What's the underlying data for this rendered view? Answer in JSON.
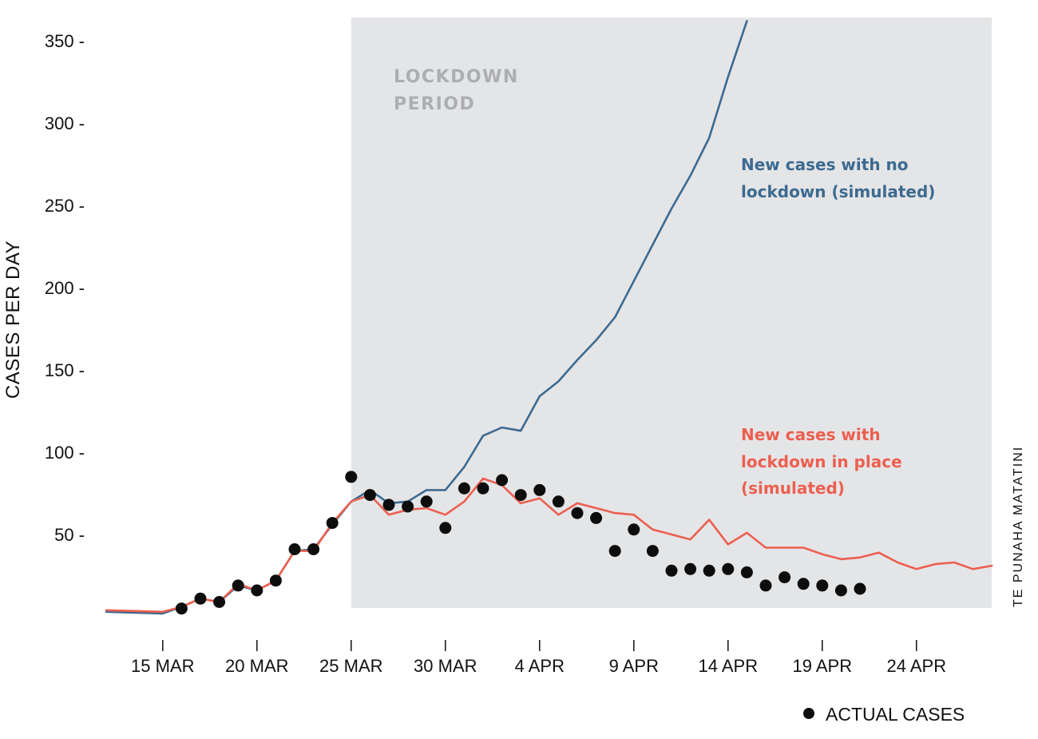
{
  "chart_data": {
    "type": "line",
    "ylabel": "CASES PER DAY",
    "ylim": [
      0,
      360
    ],
    "yticks": [
      50,
      100,
      150,
      200,
      250,
      300,
      350
    ],
    "ytick_labels": [
      "50 -",
      "100 -",
      "150 -",
      "200 -",
      "250 -",
      "300 -",
      "350 -"
    ],
    "xlim": [
      "2020-03-12",
      "2020-04-28"
    ],
    "xticks": [
      "2020-03-15",
      "2020-03-20",
      "2020-03-25",
      "2020-03-30",
      "2020-04-04",
      "2020-04-09",
      "2020-04-14",
      "2020-04-19",
      "2020-04-24"
    ],
    "xtick_labels": [
      "15 MAR",
      "20 MAR",
      "25 MAR",
      "30 MAR",
      "4 APR",
      "9 APR",
      "14 APR",
      "19 APR",
      "24 APR"
    ],
    "lockdown_period": {
      "label_lines": [
        "LOCKDOWN",
        "PERIOD"
      ],
      "start": "2020-03-25",
      "end": "2020-04-28",
      "color": "#e4e5e7"
    },
    "series": [
      {
        "name": "New cases with no lockdown (simulated)",
        "label_lines": [
          "New cases with no",
          "lockdown (simulated)"
        ],
        "color": "#3d6a90",
        "points": [
          [
            "2020-03-12",
            3
          ],
          [
            "2020-03-15",
            2
          ],
          [
            "2020-03-16",
            6
          ],
          [
            "2020-03-17",
            11
          ],
          [
            "2020-03-18",
            9
          ],
          [
            "2020-03-19",
            19
          ],
          [
            "2020-03-20",
            16
          ],
          [
            "2020-03-21",
            22
          ],
          [
            "2020-03-22",
            40
          ],
          [
            "2020-03-23",
            41
          ],
          [
            "2020-03-24",
            56
          ],
          [
            "2020-03-25",
            70
          ],
          [
            "2020-03-26",
            77
          ],
          [
            "2020-03-27",
            69
          ],
          [
            "2020-03-28",
            70
          ],
          [
            "2020-03-29",
            77
          ],
          [
            "2020-03-30",
            77
          ],
          [
            "2020-03-31",
            91
          ],
          [
            "2020-04-01",
            110
          ],
          [
            "2020-04-02",
            115
          ],
          [
            "2020-04-03",
            113
          ],
          [
            "2020-04-04",
            134
          ],
          [
            "2020-04-05",
            143
          ],
          [
            "2020-04-06",
            156
          ],
          [
            "2020-04-07",
            168
          ],
          [
            "2020-04-08",
            182
          ],
          [
            "2020-04-09",
            204
          ],
          [
            "2020-04-10",
            226
          ],
          [
            "2020-04-11",
            248
          ],
          [
            "2020-04-12",
            268
          ],
          [
            "2020-04-13",
            291
          ],
          [
            "2020-04-14",
            328
          ],
          [
            "2020-04-15",
            362
          ]
        ]
      },
      {
        "name": "New cases with lockdown in place (simulated)",
        "label_lines": [
          "New cases with",
          "lockdown in place",
          "(simulated)"
        ],
        "color": "#ec5f50",
        "points": [
          [
            "2020-03-12",
            4
          ],
          [
            "2020-03-15",
            3
          ],
          [
            "2020-03-16",
            6
          ],
          [
            "2020-03-17",
            11
          ],
          [
            "2020-03-18",
            9
          ],
          [
            "2020-03-19",
            20
          ],
          [
            "2020-03-20",
            16
          ],
          [
            "2020-03-21",
            22
          ],
          [
            "2020-03-22",
            40
          ],
          [
            "2020-03-23",
            40
          ],
          [
            "2020-03-24",
            57
          ],
          [
            "2020-03-25",
            70
          ],
          [
            "2020-03-26",
            74
          ],
          [
            "2020-03-27",
            62
          ],
          [
            "2020-03-28",
            65
          ],
          [
            "2020-03-29",
            66
          ],
          [
            "2020-03-30",
            62
          ],
          [
            "2020-03-31",
            70
          ],
          [
            "2020-04-01",
            84
          ],
          [
            "2020-04-02",
            80
          ],
          [
            "2020-04-03",
            69
          ],
          [
            "2020-04-04",
            72
          ],
          [
            "2020-04-05",
            62
          ],
          [
            "2020-04-06",
            69
          ],
          [
            "2020-04-07",
            66
          ],
          [
            "2020-04-08",
            63
          ],
          [
            "2020-04-09",
            62
          ],
          [
            "2020-04-10",
            53
          ],
          [
            "2020-04-11",
            50
          ],
          [
            "2020-04-12",
            47
          ],
          [
            "2020-04-13",
            59
          ],
          [
            "2020-04-14",
            44
          ],
          [
            "2020-04-15",
            51
          ],
          [
            "2020-04-16",
            42
          ],
          [
            "2020-04-17",
            42
          ],
          [
            "2020-04-18",
            42
          ],
          [
            "2020-04-19",
            38
          ],
          [
            "2020-04-20",
            35
          ],
          [
            "2020-04-21",
            36
          ],
          [
            "2020-04-22",
            39
          ],
          [
            "2020-04-23",
            33
          ],
          [
            "2020-04-24",
            29
          ],
          [
            "2020-04-25",
            32
          ],
          [
            "2020-04-26",
            33
          ],
          [
            "2020-04-27",
            29
          ],
          [
            "2020-04-28",
            31
          ]
        ]
      }
    ],
    "actual_cases": {
      "name": "ACTUAL CASES",
      "color": "#0d0d0d",
      "points": [
        [
          "2020-03-16",
          5
        ],
        [
          "2020-03-17",
          11
        ],
        [
          "2020-03-18",
          9
        ],
        [
          "2020-03-19",
          19
        ],
        [
          "2020-03-20",
          16
        ],
        [
          "2020-03-21",
          22
        ],
        [
          "2020-03-22",
          41
        ],
        [
          "2020-03-23",
          41
        ],
        [
          "2020-03-24",
          57
        ],
        [
          "2020-03-25",
          85
        ],
        [
          "2020-03-26",
          74
        ],
        [
          "2020-03-27",
          68
        ],
        [
          "2020-03-28",
          67
        ],
        [
          "2020-03-29",
          70
        ],
        [
          "2020-03-30",
          54
        ],
        [
          "2020-03-31",
          78
        ],
        [
          "2020-04-01",
          78
        ],
        [
          "2020-04-02",
          83
        ],
        [
          "2020-04-03",
          74
        ],
        [
          "2020-04-04",
          77
        ],
        [
          "2020-04-05",
          70
        ],
        [
          "2020-04-06",
          63
        ],
        [
          "2020-04-07",
          60
        ],
        [
          "2020-04-08",
          40
        ],
        [
          "2020-04-09",
          53
        ],
        [
          "2020-04-10",
          40
        ],
        [
          "2020-04-11",
          28
        ],
        [
          "2020-04-12",
          29
        ],
        [
          "2020-04-13",
          28
        ],
        [
          "2020-04-14",
          29
        ],
        [
          "2020-04-15",
          27
        ],
        [
          "2020-04-16",
          19
        ],
        [
          "2020-04-17",
          24
        ],
        [
          "2020-04-18",
          20
        ],
        [
          "2020-04-19",
          19
        ],
        [
          "2020-04-20",
          16
        ],
        [
          "2020-04-21",
          17
        ]
      ]
    },
    "credit": "TE PUNAHA MATATINI",
    "legend": {
      "placement": "bottom-right",
      "label": "ACTUAL CASES"
    }
  }
}
